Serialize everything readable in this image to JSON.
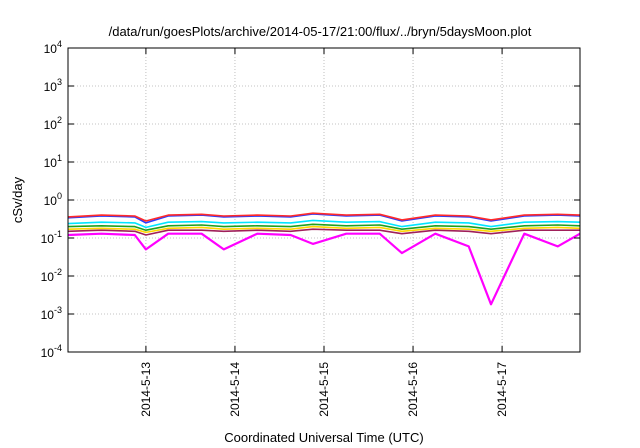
{
  "chart_data": {
    "type": "line",
    "title": "/data/run/goesPlots/archive/2014-05-17/21:00/flux/../bryn/5daysMoon.plot",
    "xlabel": "Coordinated Universal Time (UTC)",
    "ylabel": "cSv/day",
    "yscale": "log",
    "ylim": [
      0.0001,
      10000
    ],
    "xlim": [
      "2014-05-12 03:00",
      "2014-05-17 21:00"
    ],
    "x_ticks": [
      "2014-5-13",
      "2014-5-14",
      "2014-5-15",
      "2014-5-16",
      "2014-5-17"
    ],
    "y_ticks": [
      {
        "base": "10",
        "exp": "-4"
      },
      {
        "base": "10",
        "exp": "-3"
      },
      {
        "base": "10",
        "exp": "-2"
      },
      {
        "base": "10",
        "exp": "-1"
      },
      {
        "base": "10",
        "exp": "0"
      },
      {
        "base": "10",
        "exp": "1"
      },
      {
        "base": "10",
        "exp": "2"
      },
      {
        "base": "10",
        "exp": "3"
      },
      {
        "base": "10",
        "exp": "4"
      }
    ],
    "grid": true,
    "legend": "none",
    "x": [
      "2014-05-12 03:00",
      "2014-05-12 12:00",
      "2014-05-12 21:00",
      "2014-05-13 00:00",
      "2014-05-13 06:00",
      "2014-05-13 15:00",
      "2014-05-13 21:00",
      "2014-05-14 06:00",
      "2014-05-14 15:00",
      "2014-05-14 21:00",
      "2014-05-15 06:00",
      "2014-05-15 15:00",
      "2014-05-15 21:00",
      "2014-05-16 06:00",
      "2014-05-16 15:00",
      "2014-05-16 21:00",
      "2014-05-17 06:00",
      "2014-05-17 15:00",
      "2014-05-17 21:00"
    ],
    "series": [
      {
        "color": "#ff2a2a",
        "values": [
          0.36,
          0.4,
          0.38,
          0.28,
          0.4,
          0.42,
          0.38,
          0.4,
          0.38,
          0.45,
          0.4,
          0.42,
          0.3,
          0.4,
          0.38,
          0.3,
          0.4,
          0.42,
          0.4
        ]
      },
      {
        "color": "#2a3cff",
        "values": [
          0.34,
          0.38,
          0.36,
          0.25,
          0.38,
          0.4,
          0.36,
          0.38,
          0.36,
          0.43,
          0.38,
          0.4,
          0.28,
          0.38,
          0.36,
          0.28,
          0.38,
          0.4,
          0.38
        ]
      },
      {
        "color": "#00e5ff",
        "values": [
          0.24,
          0.26,
          0.25,
          0.19,
          0.26,
          0.27,
          0.25,
          0.26,
          0.25,
          0.29,
          0.26,
          0.27,
          0.2,
          0.26,
          0.25,
          0.2,
          0.26,
          0.27,
          0.26
        ]
      },
      {
        "color": "#1fa01f",
        "values": [
          0.2,
          0.21,
          0.2,
          0.16,
          0.21,
          0.22,
          0.2,
          0.21,
          0.2,
          0.23,
          0.21,
          0.22,
          0.17,
          0.21,
          0.2,
          0.17,
          0.21,
          0.22,
          0.21
        ]
      },
      {
        "color": "#ffd800",
        "values": [
          0.17,
          0.18,
          0.17,
          0.14,
          0.18,
          0.19,
          0.17,
          0.18,
          0.17,
          0.2,
          0.18,
          0.19,
          0.15,
          0.18,
          0.17,
          0.15,
          0.18,
          0.19,
          0.18
        ]
      },
      {
        "color": "#a0205a",
        "values": [
          0.15,
          0.16,
          0.15,
          0.12,
          0.16,
          0.16,
          0.15,
          0.16,
          0.15,
          0.17,
          0.16,
          0.16,
          0.13,
          0.16,
          0.15,
          0.13,
          0.16,
          0.16,
          0.16
        ]
      },
      {
        "color": "#ff00ff",
        "values": [
          0.12,
          0.13,
          0.12,
          0.05,
          0.13,
          0.13,
          0.05,
          0.13,
          0.12,
          0.07,
          0.13,
          0.13,
          0.04,
          0.13,
          0.06,
          0.0018,
          0.13,
          0.06,
          0.13
        ]
      }
    ]
  }
}
